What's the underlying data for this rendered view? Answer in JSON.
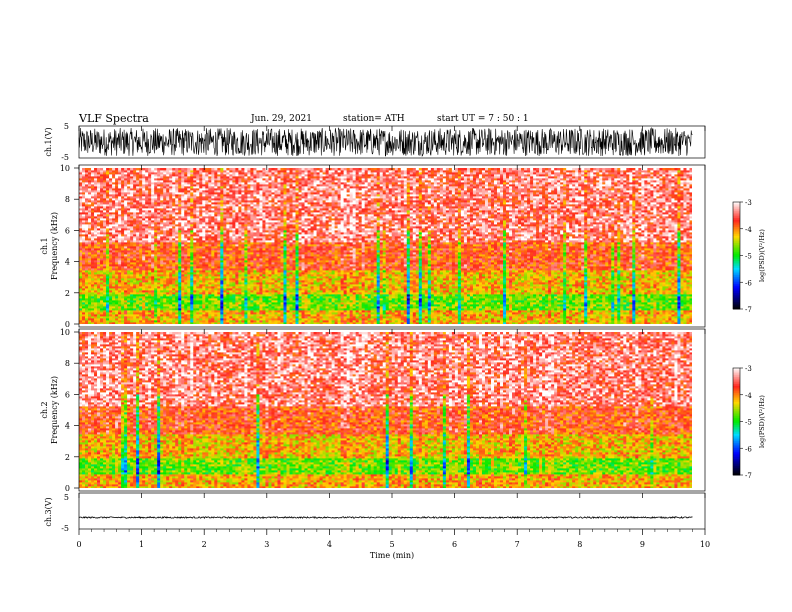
{
  "header": {
    "title": "VLF  Spectra",
    "date": "Jun. 29, 2021",
    "station": "station= ATH",
    "start_ut": "start  UT  =   7  : 50 : 1"
  },
  "chart_data": [
    {
      "type": "line",
      "panel": "ch1-waveform",
      "ylabel": "ch.1(V)",
      "yticks": [
        "5",
        "-5"
      ],
      "ylim": [
        -5,
        5
      ],
      "xlim": [
        0,
        10
      ],
      "data_end_min": 9.8,
      "amplitude_fraction_of_range": 0.88,
      "trace_color": "#000000"
    },
    {
      "type": "heatmap",
      "panel": "ch1-spectrogram",
      "ylabel_line1": "ch.1",
      "ylabel_line2": "Frequency  (kHz)",
      "yticks": [
        "0",
        "2",
        "4",
        "6",
        "8",
        "10"
      ],
      "ylim": [
        0,
        10
      ],
      "xlim": [
        0,
        10
      ],
      "data_end_min": 9.8,
      "colorbar": {
        "label": "log(PSD)(V²/Hz)",
        "ticks": [
          "-3",
          "-4",
          "-5",
          "-6",
          "-7"
        ],
        "range": [
          -7,
          -3
        ],
        "colors": [
          "#ffffff",
          "#ff2020",
          "#ffd000",
          "#00ff00",
          "#00e0ff",
          "#0000ff",
          "#000000"
        ]
      }
    },
    {
      "type": "heatmap",
      "panel": "ch2-spectrogram",
      "ylabel_line1": "ch.2",
      "ylabel_line2": "Frequency  (kHz)",
      "yticks": [
        "0",
        "2",
        "4",
        "6",
        "8",
        "10"
      ],
      "ylim": [
        0,
        10
      ],
      "xlim": [
        0,
        10
      ],
      "data_end_min": 9.8,
      "colorbar": {
        "label": "log(PSD)(V²/Hz)",
        "ticks": [
          "-3",
          "-4",
          "-5",
          "-6",
          "-7"
        ],
        "range": [
          -7,
          -3
        ],
        "colors": [
          "#ffffff",
          "#ff2020",
          "#ffd000",
          "#00ff00",
          "#00e0ff",
          "#0000ff",
          "#000000"
        ]
      }
    },
    {
      "type": "line",
      "panel": "ch3-waveform",
      "ylabel": "ch.3(V)",
      "yticks": [
        "5",
        "-5"
      ],
      "ylim": [
        -5,
        5
      ],
      "xlim": [
        0,
        10
      ],
      "data_end_min": 9.8,
      "offset_v": -1.8,
      "amplitude_fraction_of_range": 0.04,
      "trace_color": "#000000"
    }
  ],
  "x_axis": {
    "label": "Time  (min)",
    "ticks": [
      "0",
      "1",
      "2",
      "3",
      "4",
      "5",
      "6",
      "7",
      "8",
      "9",
      "10"
    ]
  }
}
